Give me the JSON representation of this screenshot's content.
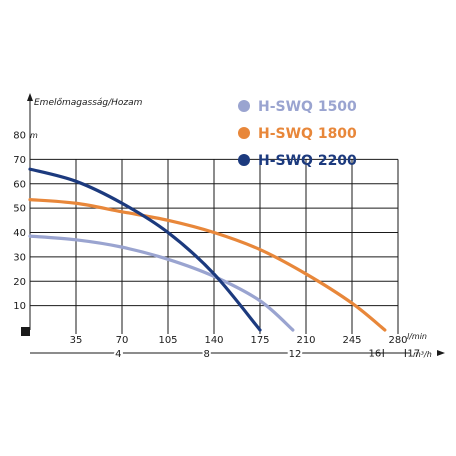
{
  "chart_data": {
    "type": "line",
    "ylabel": "Emelőmagasság/Hozam",
    "yunit": "m",
    "xunit_lmin": "l/min",
    "xunit_m3h": "m³/h",
    "ylim": [
      0,
      80
    ],
    "xlim": [
      0,
      280
    ],
    "yticks": [
      10,
      20,
      30,
      40,
      50,
      60,
      70,
      80
    ],
    "xticks_lmin": [
      35,
      70,
      105,
      140,
      175,
      210,
      245,
      280
    ],
    "xticks_m3h": [
      {
        "label": "4",
        "value": 4
      },
      {
        "label": "8",
        "value": 8
      },
      {
        "label": "12",
        "value": 12
      },
      {
        "label": "16",
        "value": 16
      },
      {
        "label": "17",
        "value": 17
      }
    ],
    "grid": true,
    "legend_position": "top-right",
    "series": [
      {
        "name": "H-SWQ 1500",
        "color": "#9aa4d0",
        "x": [
          0,
          35,
          70,
          105,
          140,
          175,
          200
        ],
        "y": [
          38.5,
          37,
          34,
          29,
          22,
          12,
          0
        ]
      },
      {
        "name": "H-SWQ 1800",
        "color": "#e8873a",
        "x": [
          0,
          35,
          70,
          105,
          140,
          175,
          210,
          245,
          270
        ],
        "y": [
          53.5,
          52,
          48.5,
          45,
          40,
          33,
          23,
          11,
          0
        ]
      },
      {
        "name": "H-SWQ 2200",
        "color": "#1c3a7e",
        "x": [
          0,
          35,
          70,
          105,
          140,
          175
        ],
        "y": [
          66,
          61,
          52,
          40,
          23,
          0
        ]
      }
    ]
  }
}
